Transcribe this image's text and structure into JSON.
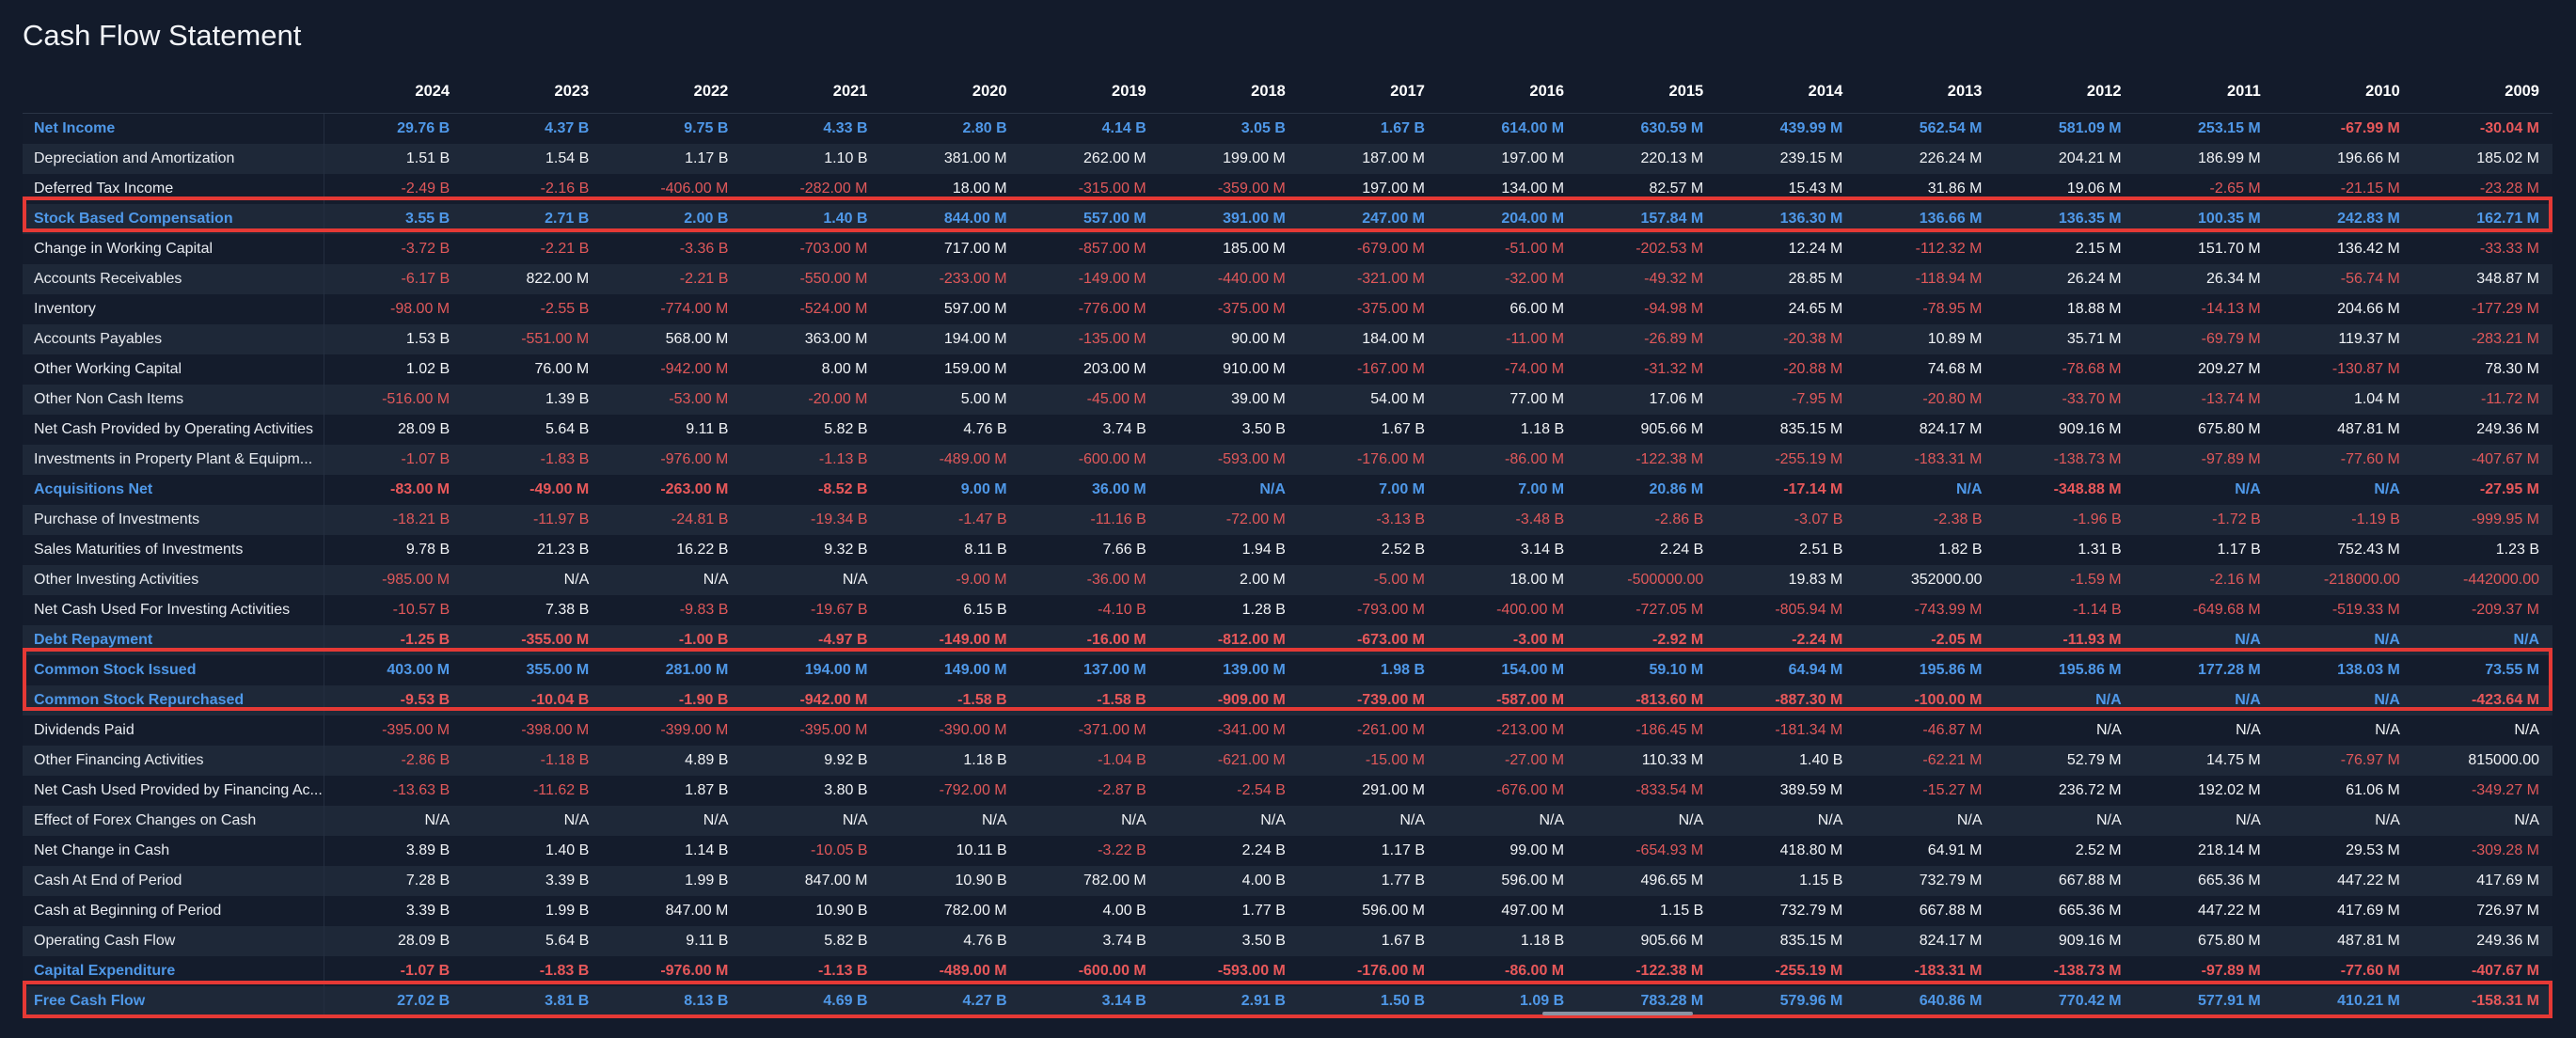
{
  "title": "Cash Flow Statement",
  "years": [
    "2024",
    "2023",
    "2022",
    "2021",
    "2020",
    "2019",
    "2018",
    "2017",
    "2016",
    "2015",
    "2014",
    "2013",
    "2012",
    "2011",
    "2010",
    "2009"
  ],
  "rows": [
    {
      "label": "Net Income",
      "hl": true,
      "values": [
        "29.76 B",
        "4.37 B",
        "9.75 B",
        "4.33 B",
        "2.80 B",
        "4.14 B",
        "3.05 B",
        "1.67 B",
        "614.00 M",
        "630.59 M",
        "439.99 M",
        "562.54 M",
        "581.09 M",
        "253.15 M",
        "-67.99 M",
        "-30.04 M"
      ]
    },
    {
      "label": "Depreciation and Amortization",
      "hl": false,
      "values": [
        "1.51 B",
        "1.54 B",
        "1.17 B",
        "1.10 B",
        "381.00 M",
        "262.00 M",
        "199.00 M",
        "187.00 M",
        "197.00 M",
        "220.13 M",
        "239.15 M",
        "226.24 M",
        "204.21 M",
        "186.99 M",
        "196.66 M",
        "185.02 M"
      ]
    },
    {
      "label": "Deferred Tax Income",
      "hl": false,
      "values": [
        "-2.49 B",
        "-2.16 B",
        "-406.00 M",
        "-282.00 M",
        "18.00 M",
        "-315.00 M",
        "-359.00 M",
        "197.00 M",
        "134.00 M",
        "82.57 M",
        "15.43 M",
        "31.86 M",
        "19.06 M",
        "-2.65 M",
        "-21.15 M",
        "-23.28 M"
      ]
    },
    {
      "label": "Stock Based Compensation",
      "hl": true,
      "values": [
        "3.55 B",
        "2.71 B",
        "2.00 B",
        "1.40 B",
        "844.00 M",
        "557.00 M",
        "391.00 M",
        "247.00 M",
        "204.00 M",
        "157.84 M",
        "136.30 M",
        "136.66 M",
        "136.35 M",
        "100.35 M",
        "242.83 M",
        "162.71 M"
      ]
    },
    {
      "label": "Change in Working Capital",
      "hl": false,
      "values": [
        "-3.72 B",
        "-2.21 B",
        "-3.36 B",
        "-703.00 M",
        "717.00 M",
        "-857.00 M",
        "185.00 M",
        "-679.00 M",
        "-51.00 M",
        "-202.53 M",
        "12.24 M",
        "-112.32 M",
        "2.15 M",
        "151.70 M",
        "136.42 M",
        "-33.33 M"
      ]
    },
    {
      "label": "Accounts Receivables",
      "hl": false,
      "values": [
        "-6.17 B",
        "822.00 M",
        "-2.21 B",
        "-550.00 M",
        "-233.00 M",
        "-149.00 M",
        "-440.00 M",
        "-321.00 M",
        "-32.00 M",
        "-49.32 M",
        "28.85 M",
        "-118.94 M",
        "26.24 M",
        "26.34 M",
        "-56.74 M",
        "348.87 M"
      ]
    },
    {
      "label": "Inventory",
      "hl": false,
      "values": [
        "-98.00 M",
        "-2.55 B",
        "-774.00 M",
        "-524.00 M",
        "597.00 M",
        "-776.00 M",
        "-375.00 M",
        "-375.00 M",
        "66.00 M",
        "-94.98 M",
        "24.65 M",
        "-78.95 M",
        "18.88 M",
        "-14.13 M",
        "204.66 M",
        "-177.29 M"
      ]
    },
    {
      "label": "Accounts Payables",
      "hl": false,
      "values": [
        "1.53 B",
        "-551.00 M",
        "568.00 M",
        "363.00 M",
        "194.00 M",
        "-135.00 M",
        "90.00 M",
        "184.00 M",
        "-11.00 M",
        "-26.89 M",
        "-20.38 M",
        "10.89 M",
        "35.71 M",
        "-69.79 M",
        "119.37 M",
        "-283.21 M"
      ]
    },
    {
      "label": "Other Working Capital",
      "hl": false,
      "values": [
        "1.02 B",
        "76.00 M",
        "-942.00 M",
        "8.00 M",
        "159.00 M",
        "203.00 M",
        "910.00 M",
        "-167.00 M",
        "-74.00 M",
        "-31.32 M",
        "-20.88 M",
        "74.68 M",
        "-78.68 M",
        "209.27 M",
        "-130.87 M",
        "78.30 M"
      ]
    },
    {
      "label": "Other Non Cash Items",
      "hl": false,
      "values": [
        "-516.00 M",
        "1.39 B",
        "-53.00 M",
        "-20.00 M",
        "5.00 M",
        "-45.00 M",
        "39.00 M",
        "54.00 M",
        "77.00 M",
        "17.06 M",
        "-7.95 M",
        "-20.80 M",
        "-33.70 M",
        "-13.74 M",
        "1.04 M",
        "-11.72 M"
      ]
    },
    {
      "label": "Net Cash Provided by Operating Activities",
      "hl": false,
      "values": [
        "28.09 B",
        "5.64 B",
        "9.11 B",
        "5.82 B",
        "4.76 B",
        "3.74 B",
        "3.50 B",
        "1.67 B",
        "1.18 B",
        "905.66 M",
        "835.15 M",
        "824.17 M",
        "909.16 M",
        "675.80 M",
        "487.81 M",
        "249.36 M"
      ]
    },
    {
      "label": "Investments in Property Plant & Equipm...",
      "hl": false,
      "values": [
        "-1.07 B",
        "-1.83 B",
        "-976.00 M",
        "-1.13 B",
        "-489.00 M",
        "-600.00 M",
        "-593.00 M",
        "-176.00 M",
        "-86.00 M",
        "-122.38 M",
        "-255.19 M",
        "-183.31 M",
        "-138.73 M",
        "-97.89 M",
        "-77.60 M",
        "-407.67 M"
      ]
    },
    {
      "label": "Acquisitions Net",
      "hl": true,
      "values": [
        "-83.00 M",
        "-49.00 M",
        "-263.00 M",
        "-8.52 B",
        "9.00 M",
        "36.00 M",
        "N/A",
        "7.00 M",
        "7.00 M",
        "20.86 M",
        "-17.14 M",
        "N/A",
        "-348.88 M",
        "N/A",
        "N/A",
        "-27.95 M"
      ]
    },
    {
      "label": "Purchase of Investments",
      "hl": false,
      "values": [
        "-18.21 B",
        "-11.97 B",
        "-24.81 B",
        "-19.34 B",
        "-1.47 B",
        "-11.16 B",
        "-72.00 M",
        "-3.13 B",
        "-3.48 B",
        "-2.86 B",
        "-3.07 B",
        "-2.38 B",
        "-1.96 B",
        "-1.72 B",
        "-1.19 B",
        "-999.95 M"
      ]
    },
    {
      "label": "Sales Maturities of Investments",
      "hl": false,
      "values": [
        "9.78 B",
        "21.23 B",
        "16.22 B",
        "9.32 B",
        "8.11 B",
        "7.66 B",
        "1.94 B",
        "2.52 B",
        "3.14 B",
        "2.24 B",
        "2.51 B",
        "1.82 B",
        "1.31 B",
        "1.17 B",
        "752.43 M",
        "1.23 B"
      ]
    },
    {
      "label": "Other Investing Activities",
      "hl": false,
      "values": [
        "-985.00 M",
        "N/A",
        "N/A",
        "N/A",
        "-9.00 M",
        "-36.00 M",
        "2.00 M",
        "-5.00 M",
        "18.00 M",
        "-500000.00",
        "19.83 M",
        "352000.00",
        "-1.59 M",
        "-2.16 M",
        "-218000.00",
        "-442000.00"
      ]
    },
    {
      "label": "Net Cash Used For Investing Activities",
      "hl": false,
      "values": [
        "-10.57 B",
        "7.38 B",
        "-9.83 B",
        "-19.67 B",
        "6.15 B",
        "-4.10 B",
        "1.28 B",
        "-793.00 M",
        "-400.00 M",
        "-727.05 M",
        "-805.94 M",
        "-743.99 M",
        "-1.14 B",
        "-649.68 M",
        "-519.33 M",
        "-209.37 M"
      ]
    },
    {
      "label": "Debt Repayment",
      "hl": true,
      "values": [
        "-1.25 B",
        "-355.00 M",
        "-1.00 B",
        "-4.97 B",
        "-149.00 M",
        "-16.00 M",
        "-812.00 M",
        "-673.00 M",
        "-3.00 M",
        "-2.92 M",
        "-2.24 M",
        "-2.05 M",
        "-11.93 M",
        "N/A",
        "N/A",
        "N/A"
      ]
    },
    {
      "label": "Common Stock Issued",
      "hl": true,
      "values": [
        "403.00 M",
        "355.00 M",
        "281.00 M",
        "194.00 M",
        "149.00 M",
        "137.00 M",
        "139.00 M",
        "1.98 B",
        "154.00 M",
        "59.10 M",
        "64.94 M",
        "195.86 M",
        "195.86 M",
        "177.28 M",
        "138.03 M",
        "73.55 M"
      ]
    },
    {
      "label": "Common Stock Repurchased",
      "hl": true,
      "values": [
        "-9.53 B",
        "-10.04 B",
        "-1.90 B",
        "-942.00 M",
        "-1.58 B",
        "-1.58 B",
        "-909.00 M",
        "-739.00 M",
        "-587.00 M",
        "-813.60 M",
        "-887.30 M",
        "-100.00 M",
        "N/A",
        "N/A",
        "N/A",
        "-423.64 M"
      ]
    },
    {
      "label": "Dividends Paid",
      "hl": false,
      "values": [
        "-395.00 M",
        "-398.00 M",
        "-399.00 M",
        "-395.00 M",
        "-390.00 M",
        "-371.00 M",
        "-341.00 M",
        "-261.00 M",
        "-213.00 M",
        "-186.45 M",
        "-181.34 M",
        "-46.87 M",
        "N/A",
        "N/A",
        "N/A",
        "N/A"
      ]
    },
    {
      "label": "Other Financing Activities",
      "hl": false,
      "values": [
        "-2.86 B",
        "-1.18 B",
        "4.89 B",
        "9.92 B",
        "1.18 B",
        "-1.04 B",
        "-621.00 M",
        "-15.00 M",
        "-27.00 M",
        "110.33 M",
        "1.40 B",
        "-62.21 M",
        "52.79 M",
        "14.75 M",
        "-76.97 M",
        "815000.00"
      ]
    },
    {
      "label": "Net Cash Used Provided by Financing Ac...",
      "hl": false,
      "values": [
        "-13.63 B",
        "-11.62 B",
        "1.87 B",
        "3.80 B",
        "-792.00 M",
        "-2.87 B",
        "-2.54 B",
        "291.00 M",
        "-676.00 M",
        "-833.54 M",
        "389.59 M",
        "-15.27 M",
        "236.72 M",
        "192.02 M",
        "61.06 M",
        "-349.27 M"
      ]
    },
    {
      "label": "Effect of Forex Changes on Cash",
      "hl": false,
      "values": [
        "N/A",
        "N/A",
        "N/A",
        "N/A",
        "N/A",
        "N/A",
        "N/A",
        "N/A",
        "N/A",
        "N/A",
        "N/A",
        "N/A",
        "N/A",
        "N/A",
        "N/A",
        "N/A"
      ]
    },
    {
      "label": "Net Change in Cash",
      "hl": false,
      "values": [
        "3.89 B",
        "1.40 B",
        "1.14 B",
        "-10.05 B",
        "10.11 B",
        "-3.22 B",
        "2.24 B",
        "1.17 B",
        "99.00 M",
        "-654.93 M",
        "418.80 M",
        "64.91 M",
        "2.52 M",
        "218.14 M",
        "29.53 M",
        "-309.28 M"
      ]
    },
    {
      "label": "Cash At End of Period",
      "hl": false,
      "values": [
        "7.28 B",
        "3.39 B",
        "1.99 B",
        "847.00 M",
        "10.90 B",
        "782.00 M",
        "4.00 B",
        "1.77 B",
        "596.00 M",
        "496.65 M",
        "1.15 B",
        "732.79 M",
        "667.88 M",
        "665.36 M",
        "447.22 M",
        "417.69 M"
      ]
    },
    {
      "label": "Cash at Beginning of Period",
      "hl": false,
      "values": [
        "3.39 B",
        "1.99 B",
        "847.00 M",
        "10.90 B",
        "782.00 M",
        "4.00 B",
        "1.77 B",
        "596.00 M",
        "497.00 M",
        "1.15 B",
        "732.79 M",
        "667.88 M",
        "665.36 M",
        "447.22 M",
        "417.69 M",
        "726.97 M"
      ]
    },
    {
      "label": "Operating Cash Flow",
      "hl": false,
      "values": [
        "28.09 B",
        "5.64 B",
        "9.11 B",
        "5.82 B",
        "4.76 B",
        "3.74 B",
        "3.50 B",
        "1.67 B",
        "1.18 B",
        "905.66 M",
        "835.15 M",
        "824.17 M",
        "909.16 M",
        "675.80 M",
        "487.81 M",
        "249.36 M"
      ]
    },
    {
      "label": "Capital Expenditure",
      "hl": true,
      "values": [
        "-1.07 B",
        "-1.83 B",
        "-976.00 M",
        "-1.13 B",
        "-489.00 M",
        "-600.00 M",
        "-593.00 M",
        "-176.00 M",
        "-86.00 M",
        "-122.38 M",
        "-255.19 M",
        "-183.31 M",
        "-138.73 M",
        "-97.89 M",
        "-77.60 M",
        "-407.67 M"
      ]
    },
    {
      "label": "Free Cash Flow",
      "hl": true,
      "values": [
        "27.02 B",
        "3.81 B",
        "8.13 B",
        "4.69 B",
        "4.27 B",
        "3.14 B",
        "2.91 B",
        "1.50 B",
        "1.09 B",
        "783.28 M",
        "579.96 M",
        "640.86 M",
        "770.42 M",
        "577.91 M",
        "410.21 M",
        "-158.31 M"
      ]
    }
  ],
  "colors": {
    "background": "#131b2b",
    "highlight": "#4f98e8",
    "negative": "#e0585a",
    "box": "#e53935"
  }
}
